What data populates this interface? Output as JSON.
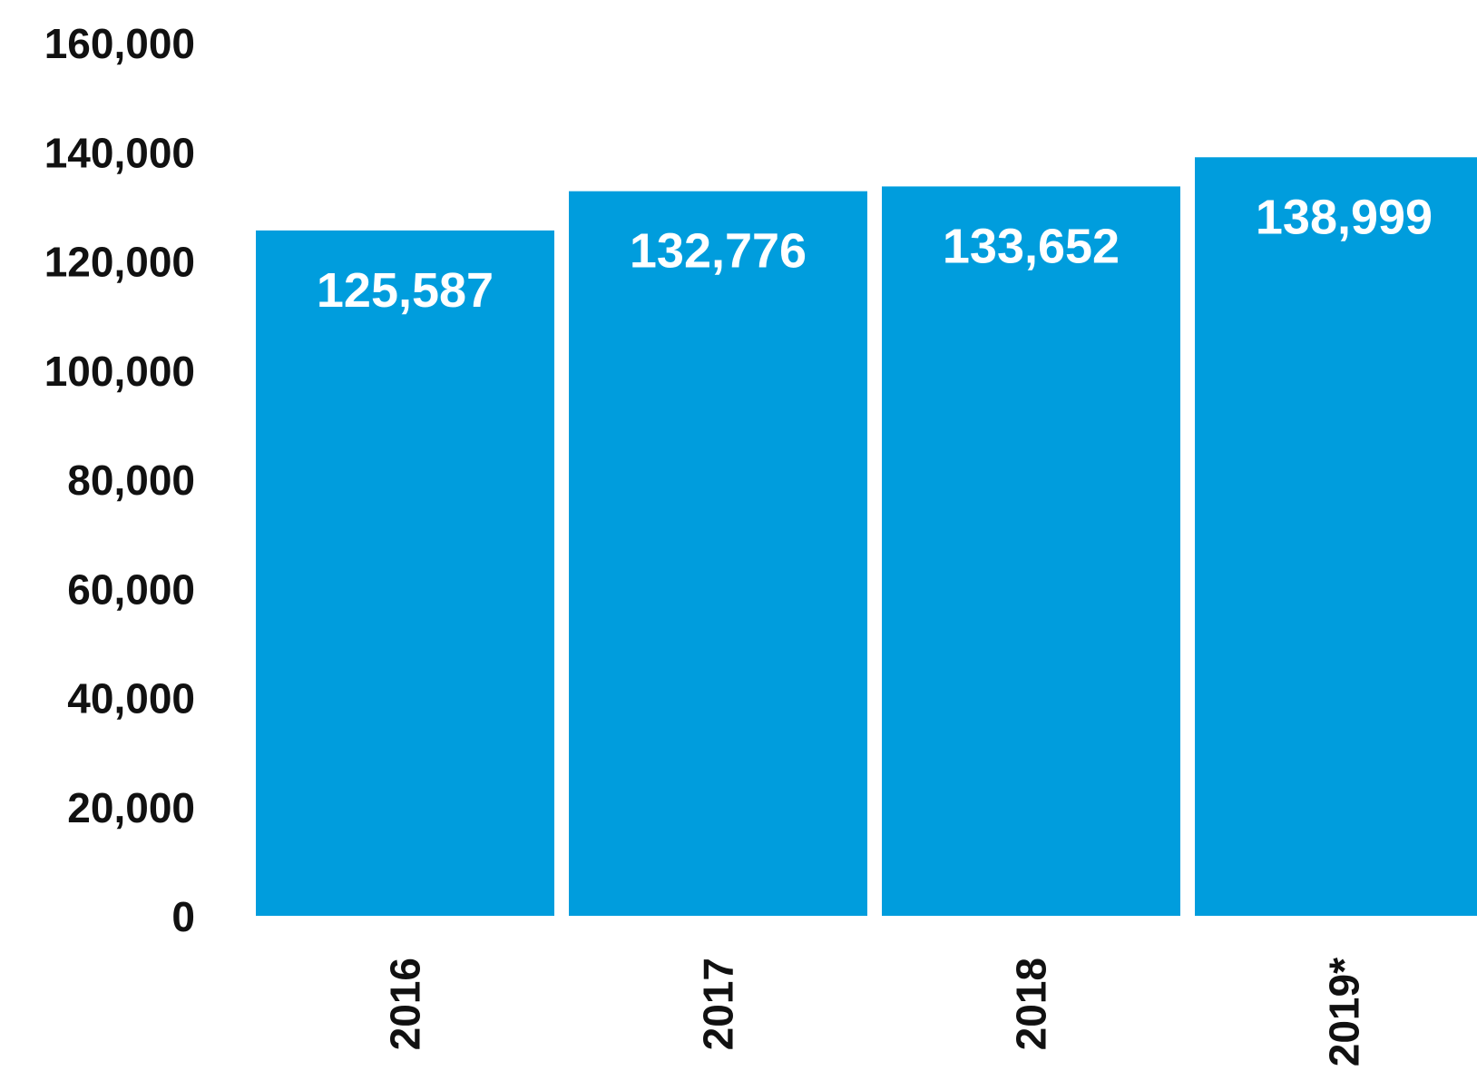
{
  "chart_data": {
    "type": "bar",
    "categories": [
      "2016",
      "2017",
      "2018",
      "2019*"
    ],
    "values": [
      125587,
      132776,
      133652,
      138999
    ],
    "value_labels": [
      "125,587",
      "132,776",
      "133,652",
      "138,999"
    ],
    "title": "",
    "xlabel": "",
    "ylabel": "",
    "ylim": [
      0,
      160000
    ],
    "yticks": [
      0,
      20000,
      40000,
      60000,
      80000,
      100000,
      120000,
      140000,
      160000
    ],
    "ytick_labels": [
      "0",
      "20,000",
      "40,000",
      "60,000",
      "80,000",
      "100,000",
      "120,000",
      "140,000",
      "160,000"
    ],
    "grid": false,
    "legend": "none",
    "colors": {
      "bar": "#009ddd",
      "value_label": "#ffffff",
      "axis_text": "#111111"
    }
  }
}
